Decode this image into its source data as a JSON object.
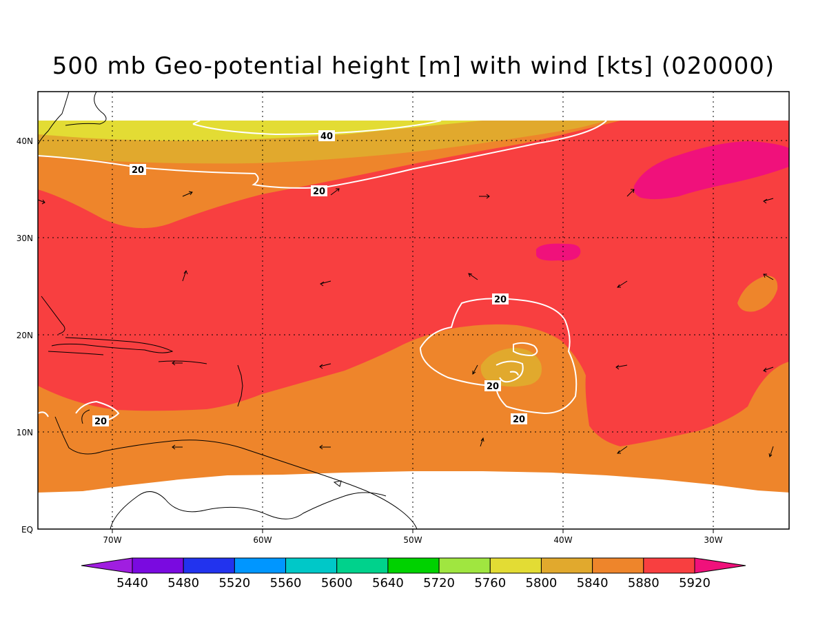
{
  "title": "500 mb Geo-potential height [m] with wind [kts] (020000)",
  "map": {
    "lon_range": [
      -75,
      -25
    ],
    "lat_range": [
      0,
      45
    ],
    "x_ticks": [
      "70W",
      "60W",
      "50W",
      "40W",
      "30W"
    ],
    "y_ticks": [
      "EQ",
      "10N",
      "20N",
      "30N",
      "40N"
    ],
    "fill_colors": {
      "c5800": "#e3dc34",
      "c5840": "#e1a92d",
      "c5880": "#ee852b",
      "c5920": "#f83f40",
      "c5960": "#f0117b"
    },
    "wind_contours": [
      {
        "label": "40"
      },
      {
        "label": "20"
      },
      {
        "label": "20"
      },
      {
        "label": "20"
      },
      {
        "label": "20"
      },
      {
        "label": "20"
      },
      {
        "label": "20"
      }
    ]
  },
  "colorbar": {
    "labels": [
      "5440",
      "5480",
      "5520",
      "5560",
      "5600",
      "5640",
      "5720",
      "5760",
      "5800",
      "5840",
      "5880",
      "5920"
    ],
    "colors": [
      "#a01ee0",
      "#7a0ae0",
      "#2233ee",
      "#0096ff",
      "#00c8c8",
      "#00d28c",
      "#00d200",
      "#a0e640",
      "#e3dc34",
      "#e1a92d",
      "#ee852b",
      "#f83f40",
      "#f0117b"
    ]
  }
}
